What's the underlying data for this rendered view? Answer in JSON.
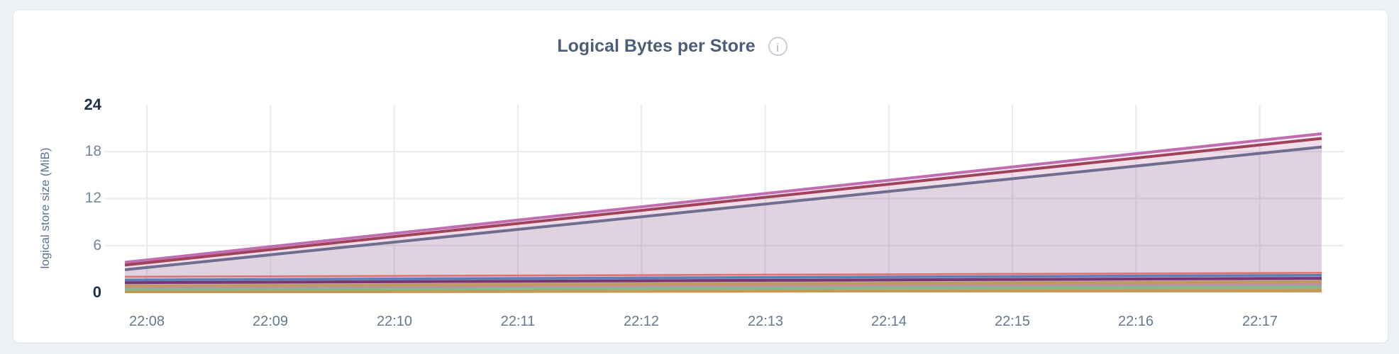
{
  "page": {
    "background_color": "#eef1f6"
  },
  "card": {
    "title": "Logical Bytes per Store",
    "info_icon_glyph": "i",
    "background_color": "#ffffff"
  },
  "chart_data": {
    "type": "area",
    "title": "Logical Bytes per Store",
    "xlabel": "",
    "ylabel": "logical store size (MiB)",
    "x_tick_labels": [
      "22:08",
      "22:09",
      "22:10",
      "22:11",
      "22:12",
      "22:13",
      "22:14",
      "22:15",
      "22:16",
      "22:17"
    ],
    "y_tick_labels": [
      "0",
      "6",
      "12",
      "18",
      "24"
    ],
    "y_tick_values": [
      0,
      6,
      12,
      18,
      24
    ],
    "ylim": [
      0,
      24
    ],
    "grid": true,
    "legend_position": "none",
    "grid_color": "#e8eaed",
    "series": [
      {
        "name": "pink",
        "color": "#c06db2",
        "line_width": 4,
        "fill_opacity": 0.16,
        "start_mib": 3.85,
        "end_mib": 20.3,
        "values_at_ticks": [
          4.2,
          5.9,
          7.6,
          9.3,
          11.0,
          12.7,
          14.4,
          16.1,
          17.8,
          19.5
        ]
      },
      {
        "name": "maroon",
        "color": "#a04258",
        "line_width": 4,
        "fill_opacity": 0.06,
        "start_mib": 3.5,
        "end_mib": 19.7,
        "values_at_ticks": [
          3.8,
          5.5,
          7.2,
          8.8,
          10.5,
          12.2,
          13.9,
          15.6,
          17.2,
          18.9
        ]
      },
      {
        "name": "slate-purple",
        "color": "#6f6e90",
        "line_width": 4,
        "fill_opacity": 0.1,
        "start_mib": 2.9,
        "end_mib": 18.6,
        "values_at_ticks": [
          3.2,
          4.8,
          6.4,
          8.1,
          9.7,
          11.3,
          13.0,
          14.6,
          16.2,
          17.8
        ]
      },
      {
        "name": "salmon",
        "color": "#e0716d",
        "line_width": 2.5,
        "fill_opacity": 0.1,
        "start_mib": 2.0,
        "end_mib": 2.5,
        "values_at_ticks": [
          2.0,
          2.1,
          2.1,
          2.2,
          2.2,
          2.3,
          2.3,
          2.4,
          2.4,
          2.5
        ]
      },
      {
        "name": "blue",
        "color": "#5b7fba",
        "line_width": 3.5,
        "fill_opacity": 0.16,
        "start_mib": 1.6,
        "end_mib": 2.2,
        "values_at_ticks": [
          1.6,
          1.7,
          1.7,
          1.8,
          1.9,
          1.9,
          2.0,
          2.0,
          2.1,
          2.2
        ]
      },
      {
        "name": "plum",
        "color": "#7a3670",
        "line_width": 4,
        "fill_opacity": 0.16,
        "start_mib": 1.25,
        "end_mib": 1.8,
        "values_at_ticks": [
          1.3,
          1.3,
          1.4,
          1.4,
          1.5,
          1.5,
          1.6,
          1.6,
          1.7,
          1.7
        ]
      },
      {
        "name": "tan",
        "color": "#c29a58",
        "line_width": 4,
        "fill_opacity": 0.2,
        "start_mib": 0.8,
        "end_mib": 1.35,
        "values_at_ticks": [
          0.8,
          0.9,
          0.9,
          1.0,
          1.0,
          1.1,
          1.1,
          1.2,
          1.25,
          1.3
        ]
      },
      {
        "name": "mauve",
        "color": "#c18da4",
        "line_width": 3.5,
        "fill_opacity": 0.2,
        "start_mib": 0.55,
        "end_mib": 1.0,
        "values_at_ticks": [
          0.6,
          0.6,
          0.7,
          0.7,
          0.75,
          0.8,
          0.8,
          0.85,
          0.9,
          0.95
        ]
      },
      {
        "name": "green",
        "color": "#83ba8b",
        "line_width": 4,
        "fill_opacity": 0.25,
        "start_mib": 0.35,
        "end_mib": 0.7,
        "values_at_ticks": [
          0.35,
          0.4,
          0.4,
          0.45,
          0.5,
          0.5,
          0.55,
          0.6,
          0.6,
          0.65
        ]
      },
      {
        "name": "gold",
        "color": "#c69952",
        "line_width": 4,
        "fill_opacity": 0.3,
        "start_mib": 0.05,
        "end_mib": 0.25,
        "values_at_ticks": [
          0.05,
          0.07,
          0.09,
          0.1,
          0.12,
          0.14,
          0.16,
          0.18,
          0.2,
          0.22
        ]
      }
    ]
  }
}
